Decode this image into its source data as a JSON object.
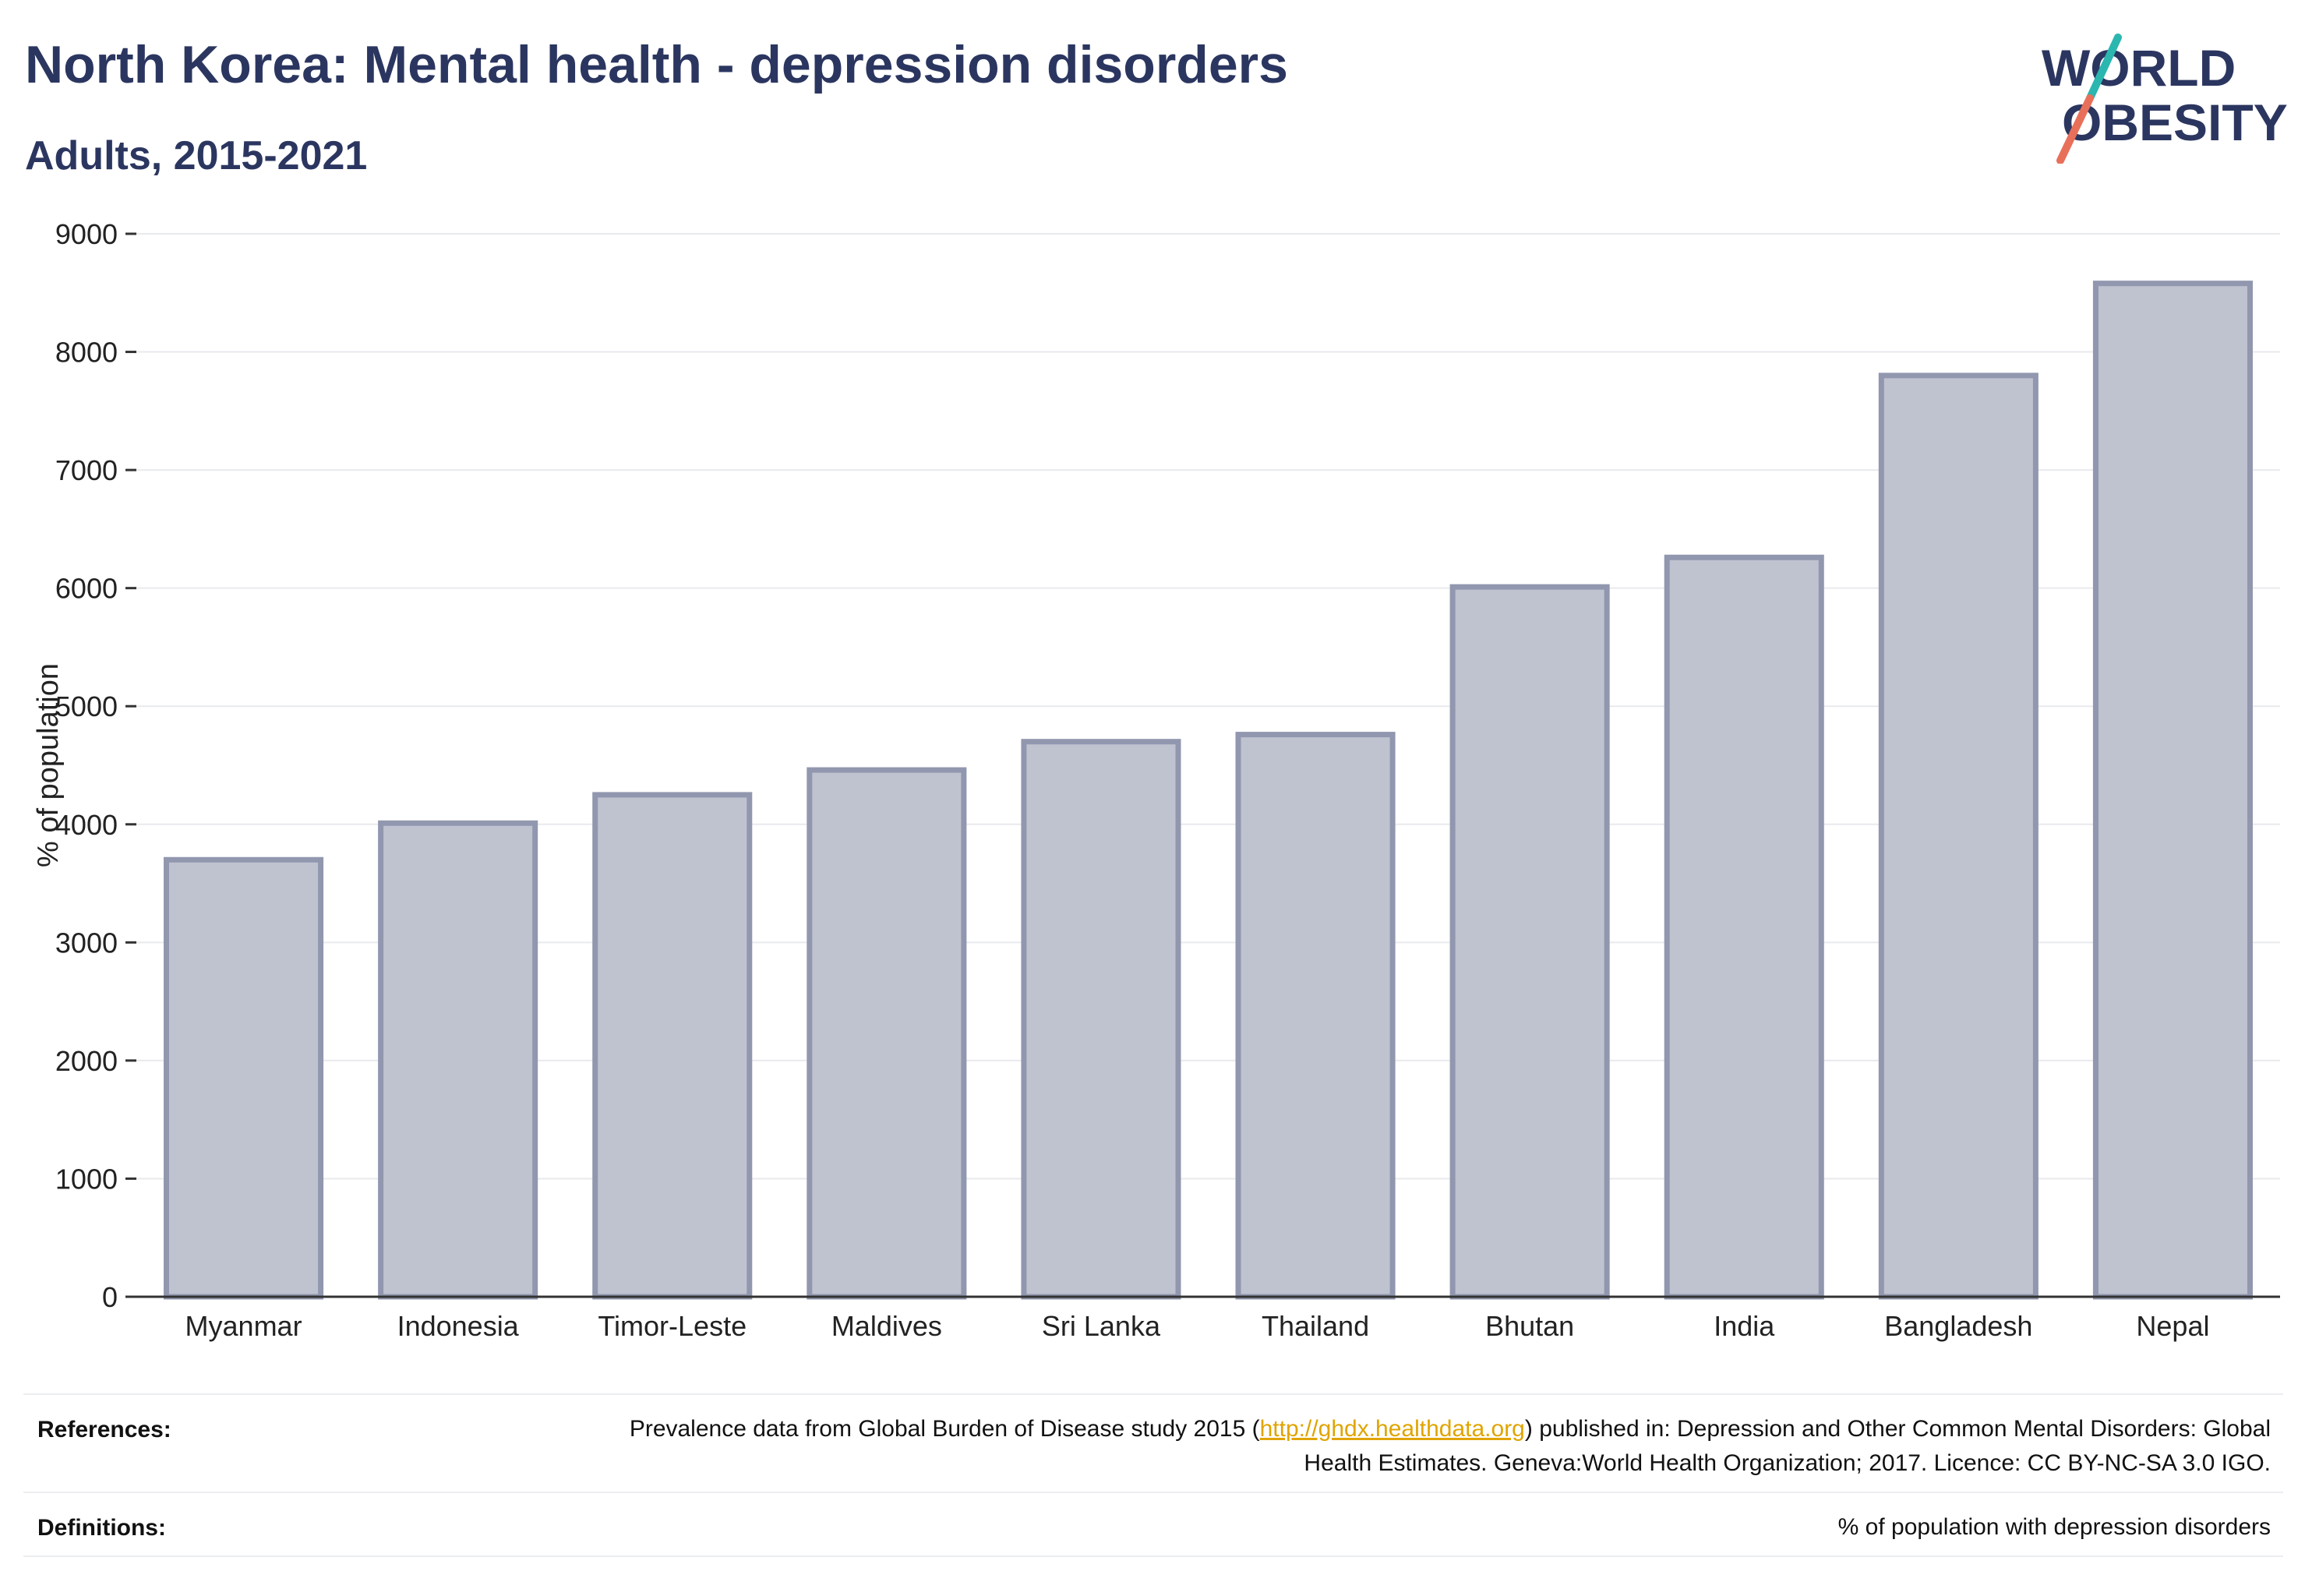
{
  "header": {
    "title": "North Korea: Mental health - depression disorders",
    "subtitle": "Adults, 2015-2021"
  },
  "logo": {
    "line1": "WORLD",
    "line2": "OBESITY",
    "colors": {
      "text": "#2b3660",
      "slash_top": "#2bb6b0",
      "slash_bottom": "#e8705a"
    }
  },
  "chart_data": {
    "type": "bar",
    "categories": [
      "Myanmar",
      "Indonesia",
      "Timor-Leste",
      "Maldives",
      "Sri Lanka",
      "Thailand",
      "Bhutan",
      "India",
      "Bangladesh",
      "Nepal"
    ],
    "values": [
      3700,
      4010,
      4250,
      4460,
      4700,
      4760,
      6010,
      6260,
      7800,
      8580
    ],
    "title": "",
    "xlabel": "",
    "ylabel": "% of population",
    "ylim": [
      0,
      9000
    ],
    "yticks": [
      0,
      1000,
      2000,
      3000,
      4000,
      5000,
      6000,
      7000,
      8000,
      9000
    ],
    "grid": true,
    "legend": "none",
    "colors": {
      "bar_fill": "#bfc3d0",
      "bar_stroke": "#9197ae"
    }
  },
  "footer": {
    "references_label": "References:",
    "references_text_1": "Prevalence data from Global Burden of Disease study 2015 (",
    "references_link": "http://ghdx.healthdata.org",
    "references_text_2": ") published in: Depression and Other Common Mental Disorders: Global Health Estimates. Geneva:World Health Organization; 2017. Licence: CC BY-NC-SA 3.0 IGO.",
    "definitions_label": "Definitions:",
    "definitions_text": "% of population with depression disorders"
  }
}
